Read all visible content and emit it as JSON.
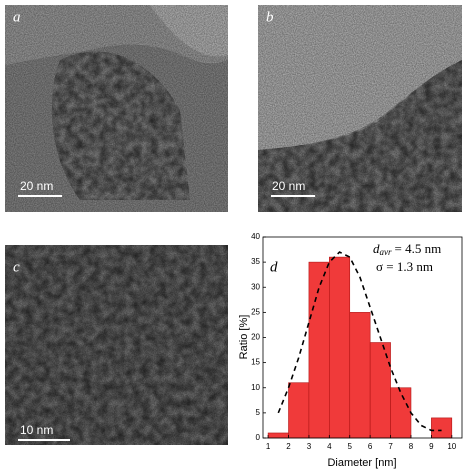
{
  "panels": [
    {
      "label": "a",
      "scale_bar": "20 nm"
    },
    {
      "label": "b",
      "scale_bar": "20 nm"
    },
    {
      "label": "c",
      "scale_bar": "10 nm"
    }
  ],
  "chart_data": {
    "type": "histogram",
    "label": "d",
    "x_label": "Diameter [nm]",
    "y_label": "Ratio [%]",
    "bins": [
      1,
      2,
      3,
      4,
      5,
      6,
      7,
      8,
      9,
      10
    ],
    "counts": [
      1,
      11,
      35,
      36,
      25,
      19,
      10,
      0,
      4
    ],
    "color": "#f03a3a",
    "xlim": [
      0.75,
      10.5
    ],
    "xticks": [
      1,
      2,
      3,
      4,
      5,
      6,
      7,
      8,
      9,
      10
    ],
    "ylim": [
      0,
      40
    ],
    "yticks": [
      0,
      5,
      10,
      15,
      20,
      25,
      30,
      35,
      40
    ],
    "annotations": {
      "symbol": "d",
      "subscript": "avr",
      "mean": "= 4.5 nm",
      "sigma": "σ = 1.3 nm"
    },
    "fit": {
      "x": [
        1.5,
        2,
        2.5,
        3,
        3.5,
        4,
        4.5,
        5,
        5.5,
        6,
        6.5,
        7,
        7.5,
        8,
        8.5,
        9,
        9.5
      ],
      "values": [
        5,
        10,
        16,
        23,
        30,
        35,
        37,
        36,
        32,
        26,
        20,
        14,
        9,
        5,
        2.5,
        1.5,
        1.5
      ]
    }
  }
}
